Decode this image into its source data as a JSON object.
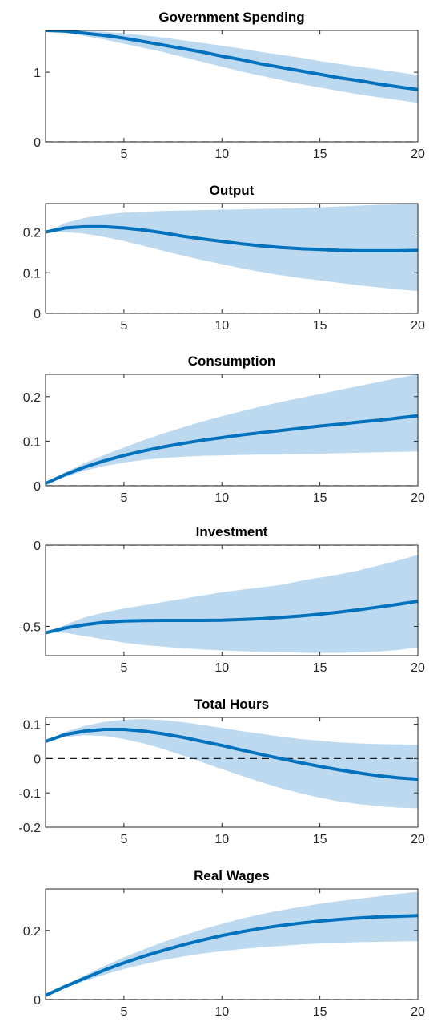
{
  "chart_data": [
    {
      "type": "line",
      "title": "Government Spending",
      "xlim": [
        1,
        20
      ],
      "ylim": [
        0,
        1.6
      ],
      "xticks": [
        5,
        10,
        15,
        20
      ],
      "yticks": [
        {
          "v": 0,
          "label": "0"
        },
        {
          "v": 1,
          "label": "1"
        }
      ],
      "zero_line": true,
      "colors": {
        "line": "#0072bd",
        "band": "#bcd9ef"
      },
      "x": [
        1,
        2,
        3,
        4,
        5,
        6,
        7,
        8,
        9,
        10,
        11,
        12,
        13,
        14,
        15,
        16,
        17,
        18,
        19,
        20
      ],
      "median": [
        1.6,
        1.59,
        1.56,
        1.53,
        1.49,
        1.44,
        1.39,
        1.34,
        1.29,
        1.23,
        1.18,
        1.12,
        1.07,
        1.02,
        0.97,
        0.92,
        0.88,
        0.83,
        0.79,
        0.75
      ],
      "lower": [
        1.6,
        1.57,
        1.52,
        1.47,
        1.41,
        1.35,
        1.29,
        1.22,
        1.15,
        1.08,
        1.01,
        0.95,
        0.89,
        0.83,
        0.78,
        0.73,
        0.68,
        0.64,
        0.6,
        0.56
      ],
      "upper": [
        1.6,
        1.6,
        1.59,
        1.58,
        1.56,
        1.53,
        1.5,
        1.46,
        1.42,
        1.38,
        1.34,
        1.29,
        1.25,
        1.21,
        1.16,
        1.12,
        1.08,
        1.04,
        1.0,
        0.96
      ]
    },
    {
      "type": "line",
      "title": "Output",
      "xlim": [
        1,
        20
      ],
      "ylim": [
        0,
        0.27
      ],
      "xticks": [
        5,
        10,
        15,
        20
      ],
      "yticks": [
        {
          "v": 0,
          "label": "0"
        },
        {
          "v": 0.1,
          "label": "0.1"
        },
        {
          "v": 0.2,
          "label": "0.2"
        }
      ],
      "zero_line": true,
      "colors": {
        "line": "#0072bd",
        "band": "#bcd9ef"
      },
      "x": [
        1,
        2,
        3,
        4,
        5,
        6,
        7,
        8,
        9,
        10,
        11,
        12,
        13,
        14,
        15,
        16,
        17,
        18,
        19,
        20
      ],
      "median": [
        0.2,
        0.21,
        0.213,
        0.213,
        0.21,
        0.205,
        0.198,
        0.19,
        0.183,
        0.177,
        0.171,
        0.166,
        0.162,
        0.159,
        0.157,
        0.155,
        0.154,
        0.154,
        0.154,
        0.155
      ],
      "lower": [
        0.2,
        0.2,
        0.196,
        0.188,
        0.178,
        0.166,
        0.154,
        0.142,
        0.131,
        0.121,
        0.111,
        0.102,
        0.094,
        0.087,
        0.081,
        0.075,
        0.069,
        0.064,
        0.059,
        0.055
      ],
      "upper": [
        0.2,
        0.222,
        0.235,
        0.243,
        0.248,
        0.25,
        0.252,
        0.253,
        0.254,
        0.255,
        0.256,
        0.257,
        0.258,
        0.259,
        0.261,
        0.263,
        0.265,
        0.267,
        0.268,
        0.27
      ]
    },
    {
      "type": "line",
      "title": "Consumption",
      "xlim": [
        1,
        20
      ],
      "ylim": [
        0,
        0.25
      ],
      "xticks": [
        5,
        10,
        15,
        20
      ],
      "yticks": [
        {
          "v": 0,
          "label": "0"
        },
        {
          "v": 0.1,
          "label": "0.1"
        },
        {
          "v": 0.2,
          "label": "0.2"
        }
      ],
      "zero_line": true,
      "colors": {
        "line": "#0072bd",
        "band": "#bcd9ef"
      },
      "x": [
        1,
        2,
        3,
        4,
        5,
        6,
        7,
        8,
        9,
        10,
        11,
        12,
        13,
        14,
        15,
        16,
        17,
        18,
        19,
        20
      ],
      "median": [
        0.005,
        0.025,
        0.042,
        0.056,
        0.068,
        0.078,
        0.087,
        0.095,
        0.102,
        0.108,
        0.114,
        0.119,
        0.124,
        0.129,
        0.134,
        0.138,
        0.143,
        0.147,
        0.152,
        0.157
      ],
      "lower": [
        0.005,
        0.02,
        0.034,
        0.044,
        0.052,
        0.058,
        0.062,
        0.065,
        0.067,
        0.068,
        0.069,
        0.07,
        0.07,
        0.071,
        0.072,
        0.073,
        0.074,
        0.075,
        0.076,
        0.077
      ],
      "upper": [
        0.005,
        0.03,
        0.051,
        0.069,
        0.086,
        0.102,
        0.117,
        0.131,
        0.144,
        0.156,
        0.167,
        0.178,
        0.188,
        0.197,
        0.206,
        0.215,
        0.224,
        0.233,
        0.242,
        0.25
      ]
    },
    {
      "type": "line",
      "title": "Investment",
      "xlim": [
        1,
        20
      ],
      "ylim": [
        -0.68,
        0
      ],
      "xticks": [
        5,
        10,
        15,
        20
      ],
      "yticks": [
        {
          "v": -0.5,
          "label": "-0.5"
        },
        {
          "v": 0,
          "label": "0"
        }
      ],
      "zero_line": true,
      "colors": {
        "line": "#0072bd",
        "band": "#bcd9ef"
      },
      "x": [
        1,
        2,
        3,
        4,
        5,
        6,
        7,
        8,
        9,
        10,
        11,
        12,
        13,
        14,
        15,
        16,
        17,
        18,
        19,
        20
      ],
      "median": [
        -0.54,
        -0.51,
        -0.49,
        -0.475,
        -0.467,
        -0.464,
        -0.463,
        -0.463,
        -0.463,
        -0.462,
        -0.458,
        -0.453,
        -0.445,
        -0.436,
        -0.425,
        -0.412,
        -0.397,
        -0.381,
        -0.364,
        -0.345
      ],
      "lower": [
        -0.54,
        -0.54,
        -0.56,
        -0.58,
        -0.6,
        -0.615,
        -0.625,
        -0.635,
        -0.642,
        -0.648,
        -0.653,
        -0.657,
        -0.66,
        -0.662,
        -0.663,
        -0.663,
        -0.66,
        -0.655,
        -0.645,
        -0.63
      ],
      "upper": [
        -0.54,
        -0.49,
        -0.445,
        -0.415,
        -0.39,
        -0.37,
        -0.35,
        -0.33,
        -0.31,
        -0.29,
        -0.275,
        -0.26,
        -0.245,
        -0.22,
        -0.2,
        -0.18,
        -0.155,
        -0.125,
        -0.095,
        -0.06
      ]
    },
    {
      "type": "line",
      "title": "Total Hours",
      "xlim": [
        1,
        20
      ],
      "ylim": [
        -0.2,
        0.12
      ],
      "xticks": [
        5,
        10,
        15,
        20
      ],
      "yticks": [
        {
          "v": -0.2,
          "label": "-0.2"
        },
        {
          "v": -0.1,
          "label": "-0.1"
        },
        {
          "v": 0,
          "label": "0"
        },
        {
          "v": 0.1,
          "label": "0.1"
        }
      ],
      "zero_line": true,
      "colors": {
        "line": "#0072bd",
        "band": "#bcd9ef"
      },
      "x": [
        1,
        2,
        3,
        4,
        5,
        6,
        7,
        8,
        9,
        10,
        11,
        12,
        13,
        14,
        15,
        16,
        17,
        18,
        19,
        20
      ],
      "median": [
        0.05,
        0.07,
        0.08,
        0.085,
        0.085,
        0.08,
        0.072,
        0.062,
        0.05,
        0.038,
        0.025,
        0.012,
        0.0,
        -0.012,
        -0.023,
        -0.033,
        -0.042,
        -0.05,
        -0.056,
        -0.06
      ],
      "lower": [
        0.05,
        0.063,
        0.068,
        0.066,
        0.057,
        0.044,
        0.028,
        0.009,
        -0.011,
        -0.031,
        -0.05,
        -0.069,
        -0.086,
        -0.101,
        -0.114,
        -0.125,
        -0.133,
        -0.139,
        -0.143,
        -0.145
      ],
      "upper": [
        0.05,
        0.078,
        0.095,
        0.107,
        0.113,
        0.115,
        0.112,
        0.106,
        0.098,
        0.089,
        0.08,
        0.072,
        0.064,
        0.057,
        0.052,
        0.047,
        0.044,
        0.042,
        0.041,
        0.04
      ]
    },
    {
      "type": "line",
      "title": "Real Wages",
      "xlim": [
        1,
        20
      ],
      "ylim": [
        0,
        0.32
      ],
      "xticks": [
        5,
        10,
        15,
        20
      ],
      "yticks": [
        {
          "v": 0,
          "label": "0"
        },
        {
          "v": 0.2,
          "label": "0.2"
        }
      ],
      "zero_line": true,
      "colors": {
        "line": "#0072bd",
        "band": "#bcd9ef"
      },
      "x": [
        1,
        2,
        3,
        4,
        5,
        6,
        7,
        8,
        9,
        10,
        11,
        12,
        13,
        14,
        15,
        16,
        17,
        18,
        19,
        20
      ],
      "median": [
        0.012,
        0.038,
        0.062,
        0.085,
        0.106,
        0.125,
        0.142,
        0.158,
        0.172,
        0.185,
        0.196,
        0.206,
        0.214,
        0.221,
        0.227,
        0.232,
        0.236,
        0.239,
        0.241,
        0.243
      ],
      "lower": [
        0.012,
        0.034,
        0.054,
        0.072,
        0.088,
        0.102,
        0.114,
        0.124,
        0.133,
        0.14,
        0.146,
        0.151,
        0.155,
        0.159,
        0.162,
        0.164,
        0.166,
        0.167,
        0.168,
        0.169
      ],
      "upper": [
        0.012,
        0.042,
        0.07,
        0.097,
        0.122,
        0.145,
        0.166,
        0.185,
        0.203,
        0.219,
        0.234,
        0.247,
        0.258,
        0.268,
        0.277,
        0.285,
        0.292,
        0.299,
        0.306,
        0.312
      ]
    }
  ]
}
